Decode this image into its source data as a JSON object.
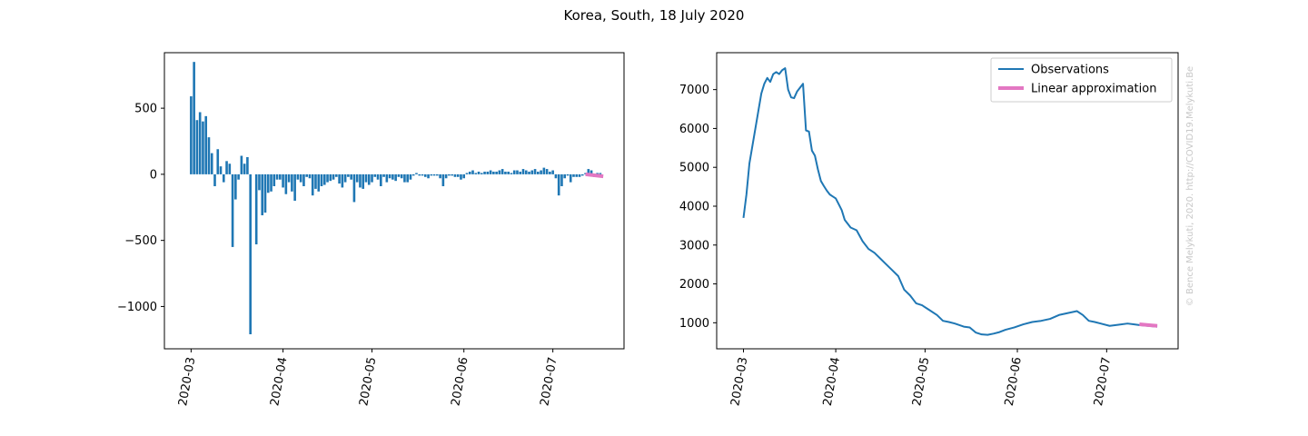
{
  "title": "Korea, South, 18 July 2020",
  "watermark": "© Bence Melykuti, 2020. http://COVID19.Melykuti.Be",
  "colors": {
    "observations": "#1f77b4",
    "approximation": "#e377c2"
  },
  "chart_data": [
    {
      "type": "bar",
      "title": "",
      "xlabel": "",
      "ylabel": "",
      "x_ticks": [
        "2020-03",
        "2020-04",
        "2020-05",
        "2020-06",
        "2020-07"
      ],
      "x_tick_dates": [
        "2020-03-01",
        "2020-04-01",
        "2020-05-01",
        "2020-06-01",
        "2020-07-01"
      ],
      "y_ticks": [
        500,
        0,
        -500,
        -1000
      ],
      "y_tick_labels": [
        "500",
        "0",
        "−500",
        "−1000"
      ],
      "xlim": [
        "2020-02-21",
        "2020-07-25"
      ],
      "ylim": [
        -1320,
        920
      ],
      "grid": false,
      "start_date": "2020-03-01",
      "series": [
        {
          "values": [
            590,
            850,
            410,
            470,
            400,
            440,
            280,
            160,
            -90,
            190,
            60,
            -60,
            100,
            80,
            -550,
            -190,
            -40,
            140,
            80,
            130,
            -1210,
            0,
            -530,
            -120,
            -310,
            -290,
            -140,
            -130,
            -90,
            -40,
            -40,
            -100,
            -150,
            -60,
            -130,
            -200,
            -40,
            -60,
            -90,
            -20,
            -30,
            -160,
            -110,
            -130,
            -90,
            -80,
            -60,
            -50,
            -40,
            -20,
            -70,
            -100,
            -60,
            -20,
            -40,
            -210,
            -60,
            -100,
            -110,
            -60,
            -80,
            -60,
            -20,
            -40,
            -90,
            -20,
            -60,
            -30,
            -40,
            -50,
            -20,
            -30,
            -60,
            -60,
            -40,
            -10,
            10,
            -10,
            -10,
            -20,
            -30,
            -10,
            -10,
            -10,
            -30,
            -90,
            -30,
            -10,
            -10,
            -20,
            -20,
            -40,
            -30,
            10,
            20,
            30,
            10,
            20,
            10,
            20,
            20,
            30,
            20,
            20,
            30,
            40,
            20,
            20,
            10,
            30,
            30,
            20,
            40,
            30,
            20,
            30,
            40,
            20,
            30,
            50,
            40,
            20,
            30,
            -30,
            -160,
            -90,
            -30,
            -10,
            -60,
            -20,
            -20,
            -20,
            -10,
            10,
            40,
            30,
            -20,
            10,
            10,
            0
          ],
          "color": "#1f77b4"
        },
        {
          "x": [
            "2020-07-12",
            "2020-07-18"
          ],
          "values": [
            0,
            -15
          ],
          "color": "#e377c2"
        }
      ]
    },
    {
      "type": "line",
      "title": "",
      "xlabel": "",
      "ylabel": "",
      "x_ticks": [
        "2020-03",
        "2020-04",
        "2020-05",
        "2020-06",
        "2020-07"
      ],
      "x_tick_dates": [
        "2020-03-01",
        "2020-04-01",
        "2020-05-01",
        "2020-06-01",
        "2020-07-01"
      ],
      "y_ticks": [
        1000,
        2000,
        3000,
        4000,
        5000,
        6000,
        7000
      ],
      "xlim": [
        "2020-02-21",
        "2020-07-25"
      ],
      "ylim": [
        330,
        7950
      ],
      "grid": false,
      "legend_position": "top-right",
      "series": [
        {
          "name": "Observations",
          "color": "#1f77b4",
          "x": [
            "2020-03-01",
            "2020-03-02",
            "2020-03-03",
            "2020-03-05",
            "2020-03-07",
            "2020-03-08",
            "2020-03-09",
            "2020-03-10",
            "2020-03-11",
            "2020-03-12",
            "2020-03-13",
            "2020-03-14",
            "2020-03-15",
            "2020-03-16",
            "2020-03-17",
            "2020-03-18",
            "2020-03-19",
            "2020-03-21",
            "2020-03-22",
            "2020-03-23",
            "2020-03-24",
            "2020-03-25",
            "2020-03-26",
            "2020-03-27",
            "2020-03-28",
            "2020-03-29",
            "2020-03-30",
            "2020-03-31",
            "2020-04-01",
            "2020-04-02",
            "2020-04-03",
            "2020-04-04",
            "2020-04-06",
            "2020-04-08",
            "2020-04-10",
            "2020-04-12",
            "2020-04-14",
            "2020-04-16",
            "2020-04-18",
            "2020-04-20",
            "2020-04-22",
            "2020-04-24",
            "2020-04-26",
            "2020-04-28",
            "2020-04-30",
            "2020-05-02",
            "2020-05-05",
            "2020-05-07",
            "2020-05-09",
            "2020-05-11",
            "2020-05-14",
            "2020-05-16",
            "2020-05-18",
            "2020-05-20",
            "2020-05-22",
            "2020-05-24",
            "2020-05-26",
            "2020-05-28",
            "2020-05-31",
            "2020-06-03",
            "2020-06-06",
            "2020-06-09",
            "2020-06-12",
            "2020-06-15",
            "2020-06-18",
            "2020-06-21",
            "2020-06-23",
            "2020-06-25",
            "2020-06-27",
            "2020-06-29",
            "2020-07-02",
            "2020-07-05",
            "2020-07-08",
            "2020-07-10",
            "2020-07-12",
            "2020-07-15",
            "2020-07-18"
          ],
          "values": [
            3700,
            4300,
            5100,
            6000,
            6900,
            7150,
            7300,
            7200,
            7400,
            7450,
            7400,
            7500,
            7550,
            7000,
            6800,
            6780,
            6950,
            7150,
            5950,
            5920,
            5430,
            5300,
            4950,
            4650,
            4520,
            4400,
            4300,
            4250,
            4200,
            4050,
            3900,
            3650,
            3450,
            3380,
            3100,
            2900,
            2800,
            2650,
            2500,
            2350,
            2200,
            1850,
            1700,
            1500,
            1450,
            1350,
            1200,
            1050,
            1020,
            980,
            900,
            880,
            750,
            700,
            690,
            720,
            760,
            820,
            880,
            960,
            1020,
            1050,
            1100,
            1200,
            1250,
            1300,
            1200,
            1050,
            1020,
            980,
            920,
            950,
            980,
            960,
            940,
            920,
            900
          ]
        },
        {
          "name": "Linear approximation",
          "color": "#e377c2",
          "x": [
            "2020-07-12",
            "2020-07-18"
          ],
          "values": [
            960,
            920
          ]
        }
      ]
    }
  ]
}
